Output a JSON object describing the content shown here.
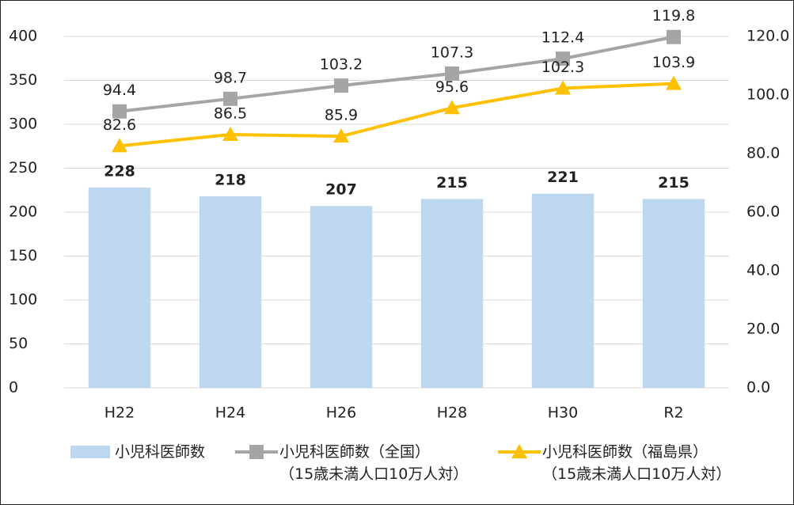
{
  "chart_data": {
    "type": "bar_line",
    "categories": [
      "H22",
      "H24",
      "H26",
      "H28",
      "H30",
      "R2"
    ],
    "series": [
      {
        "name": "小児科医師数",
        "type": "bar",
        "color": "#bdd7ee",
        "values": [
          228,
          218,
          207,
          215,
          221,
          215
        ]
      },
      {
        "name": "小児科医師数（全国）\n（15歳未満人口10万人対）",
        "type": "line",
        "marker": "square",
        "axis": "y2",
        "color": "#a5a5a5",
        "values": [
          94.4,
          98.7,
          103.2,
          107.3,
          112.4,
          119.8
        ]
      },
      {
        "name": "小児科医師数（福島県）\n（15歳未満人口10万人対）",
        "type": "line",
        "marker": "triangle",
        "axis": "y2",
        "color": "#ffc000",
        "values": [
          82.6,
          86.5,
          85.9,
          95.6,
          102.3,
          103.9
        ]
      }
    ],
    "ylim": [
      0,
      400
    ],
    "yticks": [
      0,
      50,
      100,
      150,
      200,
      250,
      300,
      350,
      400
    ],
    "y2lim": [
      0,
      120
    ],
    "y2ticks": [
      {
        "value": 0,
        "label": "0.0"
      },
      {
        "value": 20,
        "label": "20.0"
      },
      {
        "value": 40,
        "label": "40.0"
      },
      {
        "value": 60,
        "label": "60.0"
      },
      {
        "value": 80,
        "label": "80.0"
      },
      {
        "value": 100,
        "label": "100.0"
      },
      {
        "value": 120,
        "label": "120.0"
      }
    ],
    "grid": true,
    "legend": "bottom"
  }
}
